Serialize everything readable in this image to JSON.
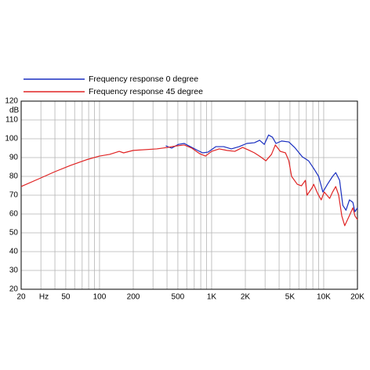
{
  "chart_data": {
    "type": "line",
    "xlabel": "Hz",
    "ylabel": "dB",
    "xscale": "log",
    "xlim": [
      20,
      20000
    ],
    "ylim": [
      20,
      120
    ],
    "xticks": [
      20,
      50,
      100,
      200,
      500,
      {
        "value": 1000,
        "label": "1K"
      },
      {
        "value": 2000,
        "label": "2K"
      },
      {
        "value": 5000,
        "label": "5K"
      },
      {
        "value": 10000,
        "label": "10K"
      },
      {
        "value": 20000,
        "label": "20K"
      }
    ],
    "xgrid": [
      20,
      30,
      40,
      50,
      60,
      70,
      80,
      90,
      100,
      200,
      300,
      400,
      500,
      600,
      700,
      800,
      900,
      1000,
      2000,
      3000,
      4000,
      5000,
      6000,
      7000,
      8000,
      9000,
      10000,
      20000
    ],
    "yticks": [
      20,
      30,
      40,
      50,
      60,
      70,
      80,
      90,
      100,
      110,
      120
    ],
    "grid": true,
    "legend": "top-left",
    "series": [
      {
        "name": "Frequency response 0 degree",
        "color": "#1a2fc0",
        "x": [
          390,
          440,
          505,
          570,
          666,
          750,
          832,
          930,
          1090,
          1280,
          1500,
          1760,
          2060,
          2410,
          2680,
          2950,
          3220,
          3490,
          3750,
          4210,
          4880,
          5500,
          6440,
          7320,
          8150,
          9010,
          9830,
          10800,
          12000,
          12800,
          13860,
          14800,
          15800,
          16970,
          18200,
          19000,
          20000
        ],
        "values": [
          96.2,
          95,
          97,
          97.5,
          95.4,
          93.8,
          92.5,
          92.9,
          95.8,
          95.8,
          94.6,
          95.8,
          97.5,
          97.9,
          99.2,
          97,
          102,
          100.8,
          97.5,
          98.8,
          98.3,
          95.4,
          90.4,
          88.3,
          84.2,
          80,
          71.7,
          75.8,
          80,
          82,
          77.9,
          64.6,
          62,
          67.5,
          66.2,
          61.2,
          63.3
        ]
      },
      {
        "name": "Frequency response 45 degree",
        "color": "#e02424",
        "x": [
          20,
          29,
          40,
          55,
          76,
          100,
          123,
          150,
          164,
          200,
          324,
          406,
          485,
          570,
          666,
          786,
          882,
          1000,
          1170,
          1370,
          1610,
          1890,
          2140,
          2410,
          2730,
          3050,
          3420,
          3700,
          4100,
          4560,
          4880,
          5170,
          5810,
          6330,
          6860,
          7100,
          7850,
          8140,
          8850,
          9500,
          10100,
          11300,
          12000,
          12800,
          13600,
          14500,
          15400,
          16970,
          18200,
          19000,
          20000
        ],
        "values": [
          74.6,
          78.8,
          82.5,
          85.8,
          88.8,
          90.8,
          91.7,
          93.3,
          92.5,
          93.8,
          94.6,
          95.4,
          96.2,
          96.7,
          95,
          92,
          90.8,
          93.3,
          94.6,
          93.8,
          93.3,
          95.4,
          94,
          92.5,
          90.4,
          88.3,
          91.7,
          96.7,
          93.3,
          92.5,
          88.3,
          80,
          75.8,
          75,
          77.9,
          70,
          73.8,
          75.8,
          70.8,
          67.5,
          71.7,
          68.3,
          71.7,
          74.6,
          70,
          59,
          53.8,
          59.2,
          63.3,
          59,
          57
        ]
      }
    ]
  }
}
